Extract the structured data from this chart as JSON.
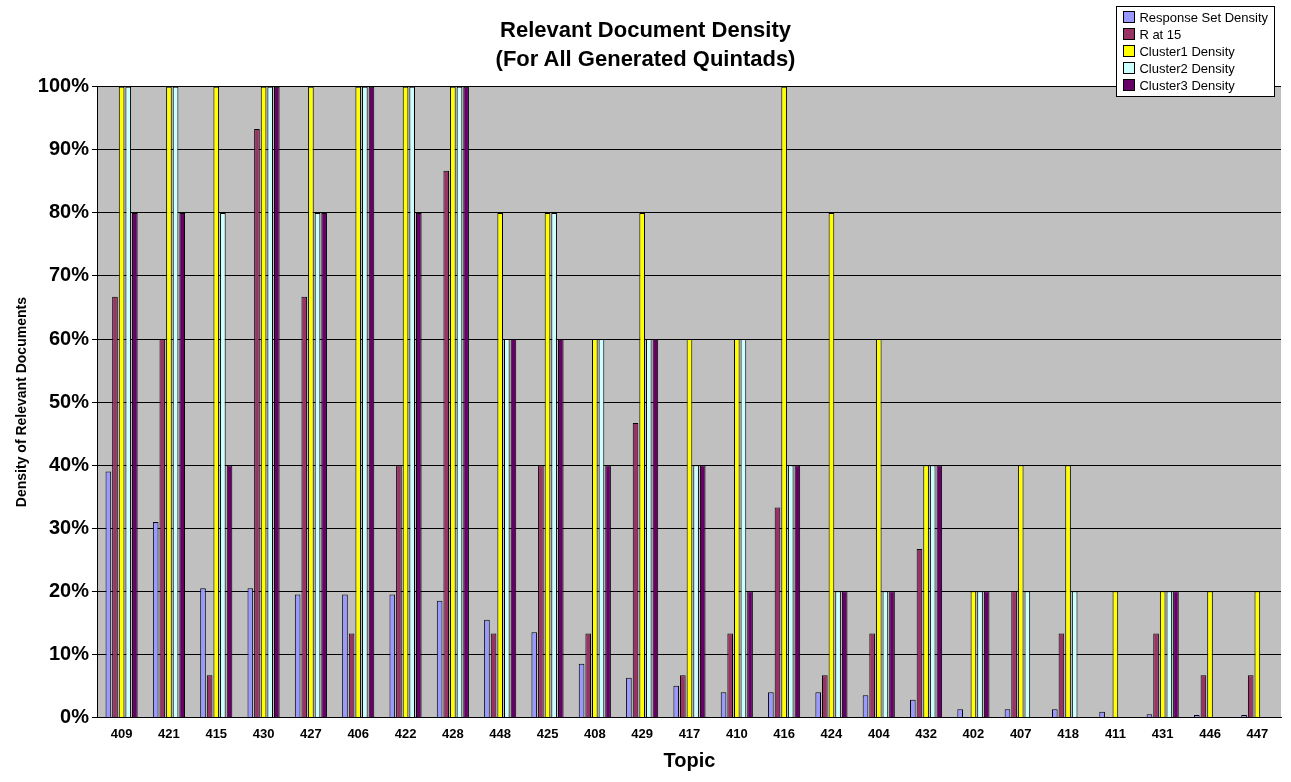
{
  "chart_data": {
    "type": "bar",
    "title": "Relevant Document Density",
    "subtitle": "(For All Generated Quintads)",
    "xlabel": "Topic",
    "ylabel": "Density of Relevant Documents",
    "categories": [
      "409",
      "421",
      "415",
      "430",
      "427",
      "406",
      "422",
      "428",
      "448",
      "425",
      "408",
      "429",
      "417",
      "410",
      "416",
      "424",
      "404",
      "432",
      "402",
      "407",
      "418",
      "411",
      "431",
      "446",
      "447"
    ],
    "series": [
      {
        "name": "Response Set Density",
        "color": "#9999ff",
        "values": [
          39,
          31,
          20.5,
          20.5,
          19.5,
          19.5,
          19.5,
          18.5,
          15.5,
          13.5,
          8.5,
          6.3,
          5,
          4,
          4,
          4,
          3.5,
          2.8,
          1.3,
          1.3,
          1.3,
          0.9,
          0.5,
          0.4,
          0.4
        ]
      },
      {
        "name": "R at 15",
        "color": "#993366",
        "values": [
          66.7,
          60,
          6.7,
          93.3,
          66.7,
          13.3,
          40,
          86.7,
          13.3,
          40,
          13.3,
          46.7,
          6.7,
          13.3,
          33.3,
          6.7,
          13.3,
          26.7,
          0,
          20,
          13.3,
          0,
          13.3,
          6.7,
          6.7
        ]
      },
      {
        "name": "Cluster1 Density",
        "color": "#ffff00",
        "values": [
          100,
          100,
          100,
          100,
          100,
          100,
          100,
          100,
          80,
          80,
          60,
          80,
          60,
          60,
          100,
          80,
          60,
          40,
          20,
          40,
          40,
          20,
          20,
          20,
          20
        ]
      },
      {
        "name": "Cluster2 Density",
        "color": "#ccffff",
        "values": [
          100,
          100,
          80,
          100,
          80,
          100,
          100,
          100,
          60,
          80,
          60,
          60,
          40,
          60,
          40,
          20,
          20,
          40,
          20,
          20,
          20,
          0,
          20,
          0,
          0
        ]
      },
      {
        "name": "Cluster3 Density",
        "color": "#660066",
        "values": [
          80,
          80,
          40,
          100,
          80,
          100,
          80,
          100,
          60,
          60,
          40,
          60,
          40,
          20,
          40,
          20,
          20,
          40,
          20,
          0,
          0,
          0,
          20,
          0,
          0
        ]
      }
    ],
    "ylim": [
      0,
      100
    ],
    "yticks": [
      {
        "value": 0,
        "label": "0%"
      },
      {
        "value": 10,
        "label": "10%"
      },
      {
        "value": 20,
        "label": "20%"
      },
      {
        "value": 30,
        "label": "30%"
      },
      {
        "value": 40,
        "label": "40%"
      },
      {
        "value": 50,
        "label": "50%"
      },
      {
        "value": 60,
        "label": "60%"
      },
      {
        "value": 70,
        "label": "70%"
      },
      {
        "value": 80,
        "label": "80%"
      },
      {
        "value": 90,
        "label": "90%"
      },
      {
        "value": 100,
        "label": "100%"
      }
    ],
    "grid": "y",
    "legend": "top right"
  }
}
